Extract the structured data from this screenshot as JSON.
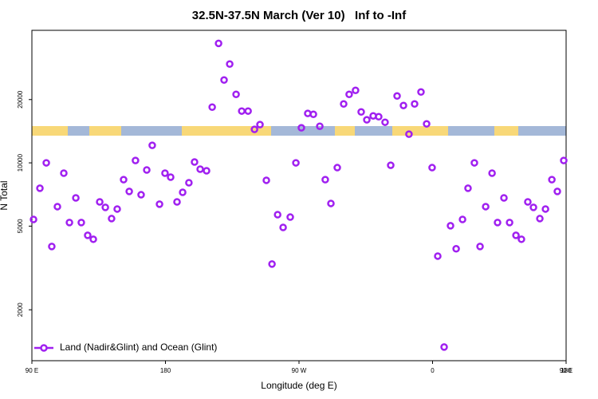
{
  "chart_data": {
    "type": "scatter",
    "title": "32.5N-37.5N March (Ver 10)   Inf to -Inf",
    "x_label": "Longitude (deg E)",
    "y_label": "N Total",
    "log_y": true,
    "legend_corner": "bottom-left",
    "xlim": [
      90,
      450
    ],
    "ylim": [
      1145,
      42700
    ],
    "xticks": [
      {
        "value": 90,
        "label": "90 E"
      },
      180,
      {
        "value": 270,
        "label": "90 W"
      },
      {
        "value": 360,
        "label": "0"
      },
      {
        "value": 450,
        "label": "90 E"
      },
      {
        "value": 540,
        "label": "180"
      }
    ],
    "yticks": [
      2000,
      5000,
      10000,
      20000
    ],
    "series": [
      {
        "name": "Land (Nadir&Glint) and Ocean (Glint)",
        "color": "#a020f0",
        "x": [
          91.1,
          95.4,
          99.7,
          103.4,
          107.2,
          111.5,
          115.3,
          119.6,
          123.3,
          127.6,
          131.4,
          135.7,
          139.5,
          143.7,
          147.5,
          151.8,
          155.6,
          159.8,
          163.6,
          167.4,
          171.1,
          176,
          179.7,
          183.5,
          187.8,
          191.6,
          195.8,
          199.6,
          203.4,
          207.7,
          211.5,
          215.8,
          219.5,
          223.3,
          227.6,
          231.4,
          235.7,
          240,
          243.7,
          248,
          251.8,
          255.6,
          259.3,
          264.1,
          267.9,
          271.6,
          275.9,
          279.7,
          284,
          287.7,
          291.5,
          295.8,
          300.1,
          303.8,
          308.1,
          311.9,
          315.7,
          320,
          323.7,
          328,
          331.8,
          336.1,
          340.4,
          344.1,
          347.9,
          352.2,
          356,
          359.7,
          363.5,
          367.8,
          372.1,
          375.9,
          380.2,
          383.9,
          388.2,
          392,
          395.8,
          400.1,
          403.8,
          408.1,
          411.9,
          416.2,
          419.9,
          424.2,
          428,
          432.3,
          436.1,
          440.4,
          444.1,
          448.4
        ],
        "values": [
          5380,
          7570,
          10000,
          4000,
          6190,
          8930,
          5200,
          6810,
          5200,
          4520,
          4330,
          6520,
          6140,
          5430,
          6030,
          8320,
          7310,
          10260,
          7050,
          9250,
          12110,
          6360,
          8930,
          8550,
          6520,
          7240,
          8040,
          10090,
          9330,
          9170,
          18410,
          37000,
          24780,
          29510,
          21170,
          17630,
          17630,
          14430,
          15200,
          8260,
          3300,
          5670,
          4930,
          5520,
          10000,
          14680,
          17180,
          17020,
          14930,
          8320,
          6410,
          9490,
          19060,
          21170,
          22120,
          17470,
          16020,
          16720,
          16580,
          15600,
          9740,
          20800,
          18740,
          13690,
          19060,
          21730,
          15330,
          9490,
          3600,
          1330,
          5020,
          3900,
          5380,
          7570,
          10000,
          4000,
          6190,
          8930,
          5200,
          6810,
          5200,
          4520,
          4330,
          6520,
          6140,
          5430,
          6030,
          8320,
          7310,
          10260
        ]
      }
    ]
  }
}
